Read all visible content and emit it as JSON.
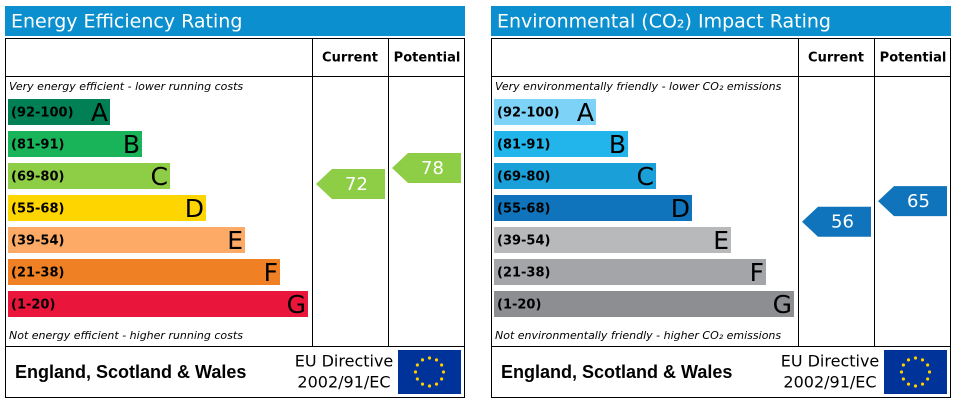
{
  "panels": [
    {
      "title": "Energy Efficiency Rating",
      "current_label": "Current",
      "potential_label": "Potential",
      "top_note": "Very energy efficient - lower running costs",
      "bottom_note": "Not energy efficient - higher running costs",
      "bands": [
        {
          "range": "(92-100)",
          "letter": "A",
          "color": "#008054"
        },
        {
          "range": "(81-91)",
          "letter": "B",
          "color": "#19b459"
        },
        {
          "range": "(69-80)",
          "letter": "C",
          "color": "#8dce46"
        },
        {
          "range": "(55-68)",
          "letter": "D",
          "color": "#ffd500"
        },
        {
          "range": "(39-54)",
          "letter": "E",
          "color": "#fcaa65"
        },
        {
          "range": "(21-38)",
          "letter": "F",
          "color": "#ef8023"
        },
        {
          "range": "(1-20)",
          "letter": "G",
          "color": "#e9153b"
        }
      ],
      "current": 72,
      "potential": 78,
      "region": "England, Scotland & Wales",
      "directive": "EU Directive",
      "directive_code": "2002/91/EC"
    },
    {
      "title": "Environmental (CO₂) Impact Rating",
      "current_label": "Current",
      "potential_label": "Potential",
      "top_note": "Very environmentally friendly - lower CO₂ emissions",
      "bottom_note": "Not environmentally friendly - higher CO₂ emissions",
      "bands": [
        {
          "range": "(92-100)",
          "letter": "A",
          "color": "#7dd3f7"
        },
        {
          "range": "(81-91)",
          "letter": "B",
          "color": "#22b5eb"
        },
        {
          "range": "(69-80)",
          "letter": "C",
          "color": "#1a9fd8"
        },
        {
          "range": "(55-68)",
          "letter": "D",
          "color": "#0f74bb"
        },
        {
          "range": "(39-54)",
          "letter": "E",
          "color": "#b8b9bb"
        },
        {
          "range": "(21-38)",
          "letter": "F",
          "color": "#a3a5a8"
        },
        {
          "range": "(1-20)",
          "letter": "G",
          "color": "#8c8e91"
        }
      ],
      "current": 56,
      "potential": 65,
      "region": "England, Scotland & Wales",
      "directive": "EU Directive",
      "directive_code": "2002/91/EC"
    }
  ]
}
